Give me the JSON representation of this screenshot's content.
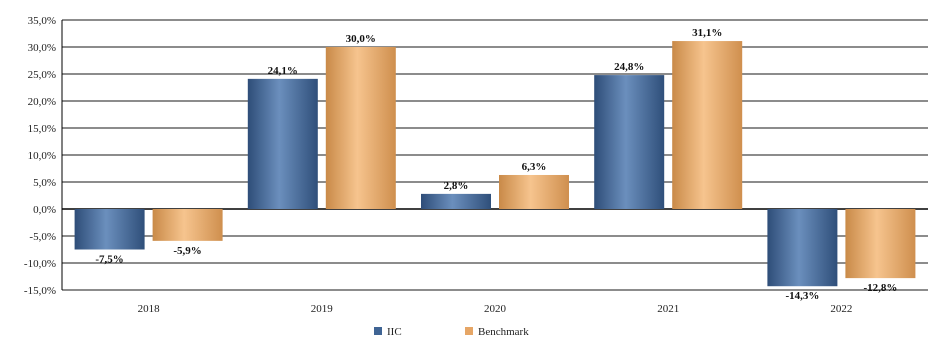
{
  "chart_data": {
    "type": "bar",
    "categories": [
      "2018",
      "2019",
      "2020",
      "2021",
      "2022"
    ],
    "series": [
      {
        "name": "IIC",
        "values": [
          -7.5,
          24.1,
          2.8,
          24.8,
          -14.3
        ],
        "labels": [
          "-7,5%",
          "24,1%",
          "2,8%",
          "24,8%",
          "-14,3%"
        ],
        "color": "#3f6494"
      },
      {
        "name": "Benchmark",
        "values": [
          -5.9,
          30.0,
          6.3,
          31.1,
          -12.8
        ],
        "labels": [
          "-5,9%",
          "30,0%",
          "6,3%",
          "31,1%",
          "-12,8%"
        ],
        "color": "#e6a666"
      }
    ],
    "ylim": [
      -15,
      35
    ],
    "yticks": [
      35,
      30,
      25,
      20,
      15,
      10,
      5,
      0,
      -5,
      -10,
      -15
    ],
    "ytick_labels": [
      "35,0%",
      "30,0%",
      "25,0%",
      "20,0%",
      "15,0%",
      "10,0%",
      "5,0%",
      "0,0%",
      "-5,0%",
      "-10,0%",
      "-15,0%"
    ],
    "grid": true,
    "legend": "bottom-center"
  }
}
